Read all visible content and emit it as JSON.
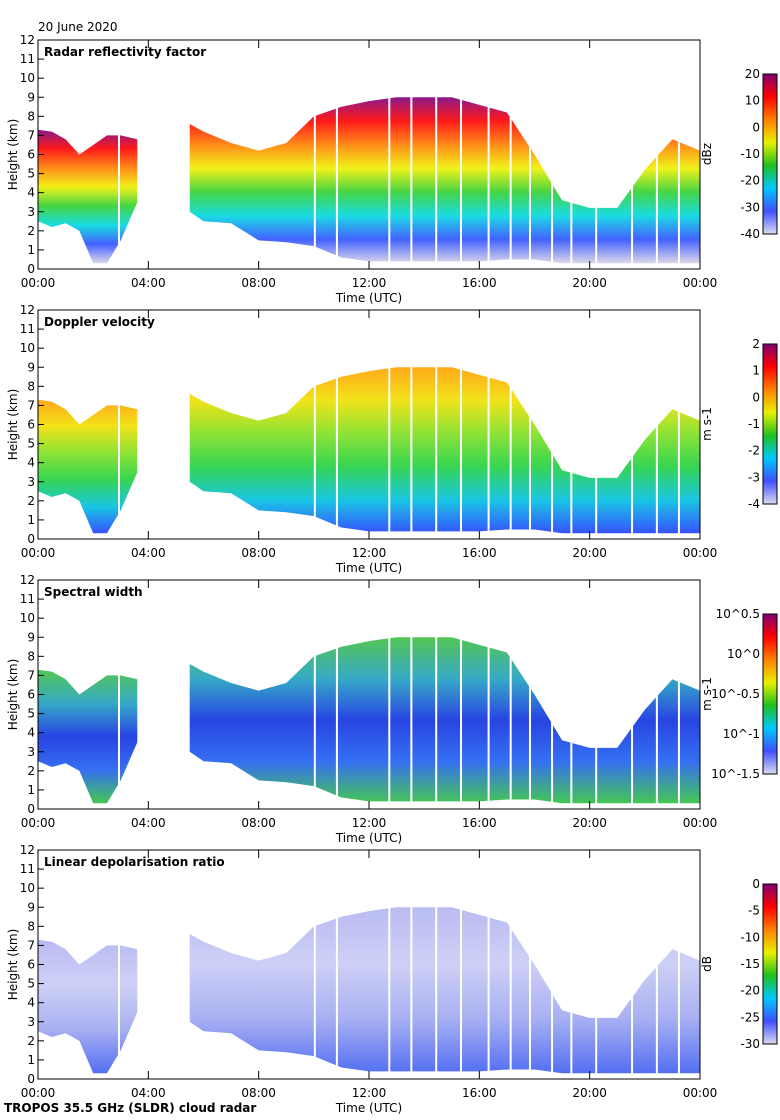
{
  "header": {
    "date": "20 June 2020"
  },
  "footer": {
    "instrument": "TROPOS 35.5 GHz (SLDR) cloud radar"
  },
  "chart_data": [
    {
      "type": "heatmap",
      "title": "Radar reflectivity factor",
      "xlabel": "Time (UTC)",
      "ylabel": "Height (km)",
      "xticks": [
        "00:00",
        "04:00",
        "08:00",
        "12:00",
        "16:00",
        "20:00",
        "00:00"
      ],
      "yticks": [
        "0",
        "1",
        "2",
        "3",
        "4",
        "5",
        "6",
        "7",
        "8",
        "9",
        "10",
        "11",
        "12"
      ],
      "ylim": [
        0,
        12
      ],
      "colorbar": {
        "label": "dBz",
        "ticks": [
          "-40",
          "-30",
          "-20",
          "-10",
          "0",
          "10",
          "20"
        ],
        "range": [
          -40,
          20
        ]
      },
      "stops": [
        "#d8d4e8",
        "#3050ff",
        "#00d8e0",
        "#30d030",
        "#f0f000",
        "#ff8000",
        "#ff0000",
        "#800080"
      ]
    },
    {
      "type": "heatmap",
      "title": "Doppler velocity",
      "xlabel": "Time (UTC)",
      "ylabel": "Height (km)",
      "xticks": [
        "00:00",
        "04:00",
        "08:00",
        "12:00",
        "16:00",
        "20:00",
        "00:00"
      ],
      "yticks": [
        "0",
        "1",
        "2",
        "3",
        "4",
        "5",
        "6",
        "7",
        "8",
        "9",
        "10",
        "11",
        "12"
      ],
      "ylim": [
        0,
        12
      ],
      "colorbar": {
        "label": "m s-1",
        "ticks": [
          "-4",
          "-3",
          "-2",
          "-1",
          "0",
          "1",
          "2"
        ],
        "range": [
          -4,
          2
        ]
      },
      "stops": [
        "#2040ff",
        "#00c0e0",
        "#20d040",
        "#80e020",
        "#f0e000",
        "#ffa000"
      ]
    },
    {
      "type": "heatmap",
      "title": "Spectral width",
      "xlabel": "Time (UTC)",
      "ylabel": "Height (km)",
      "xticks": [
        "00:00",
        "04:00",
        "08:00",
        "12:00",
        "16:00",
        "20:00",
        "00:00"
      ],
      "yticks": [
        "0",
        "1",
        "2",
        "3",
        "4",
        "5",
        "6",
        "7",
        "8",
        "9",
        "10",
        "11",
        "12"
      ],
      "ylim": [
        0,
        12
      ],
      "colorbar": {
        "label": "m s-1",
        "ticks": [
          "10^-1.5",
          "10^-1",
          "10^-0.5",
          "10^0",
          "10^0.5"
        ],
        "range": [
          -1.5,
          0.5
        ]
      },
      "stops": [
        "#30c040",
        "#2060f0",
        "#1030e0",
        "#20a0c0",
        "#40c040"
      ]
    },
    {
      "type": "heatmap",
      "title": "Linear depolarisation ratio",
      "xlabel": "Time (UTC)",
      "ylabel": "Height (km)",
      "xticks": [
        "00:00",
        "04:00",
        "08:00",
        "12:00",
        "16:00",
        "20:00",
        "00:00"
      ],
      "yticks": [
        "0",
        "1",
        "2",
        "3",
        "4",
        "5",
        "6",
        "7",
        "8",
        "9",
        "10",
        "11",
        "12"
      ],
      "ylim": [
        0,
        12
      ],
      "colorbar": {
        "label": "dB",
        "ticks": [
          "-30",
          "-25",
          "-20",
          "-15",
          "-10",
          "-5",
          "0"
        ],
        "range": [
          -30,
          0
        ]
      },
      "stops": [
        "#4060f0",
        "#a0a8f0",
        "#c8cbf4",
        "#b0b4f0"
      ]
    }
  ],
  "cloud_extent": {
    "hours": [
      0,
      0.5,
      1,
      1.5,
      2,
      2.5,
      3,
      3.6,
      5.5,
      6,
      7,
      8,
      9,
      10,
      11,
      12,
      13,
      14,
      15,
      16,
      17,
      18,
      19,
      20,
      21,
      22,
      23,
      24
    ],
    "top_km": [
      7.3,
      7.2,
      6.8,
      6.0,
      6.5,
      7.0,
      7.0,
      6.8,
      7.6,
      7.2,
      6.6,
      6.2,
      6.6,
      8.0,
      8.5,
      8.8,
      9.0,
      9.0,
      9.0,
      8.6,
      8.2,
      6.0,
      3.6,
      3.2,
      3.2,
      5.2,
      6.8,
      6.2
    ],
    "base_km": [
      2.5,
      2.2,
      2.4,
      2.0,
      0.3,
      0.3,
      1.5,
      3.5,
      3.0,
      2.5,
      2.4,
      1.5,
      1.4,
      1.2,
      0.6,
      0.4,
      0.4,
      0.4,
      0.4,
      0.4,
      0.5,
      0.5,
      0.3,
      0.3,
      0.3,
      0.3,
      0.3,
      0.3
    ]
  }
}
